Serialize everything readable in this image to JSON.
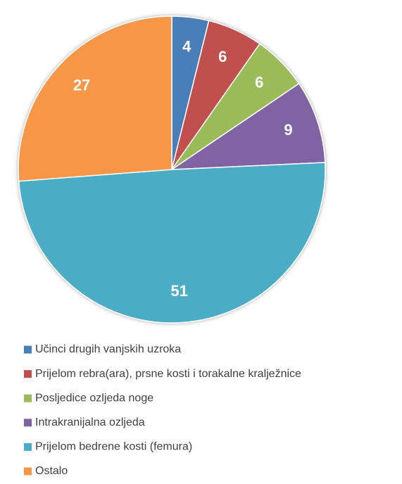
{
  "chart_data": {
    "type": "pie",
    "categories": [
      "Učinci drugih vanjskih uzroka",
      "Prijelom rebra(ara), prsne kosti i torakalne kralježnice",
      "Posljedice ozljeda noge",
      "Intrakranijalna ozljeda",
      "Prijelom bedrene kosti (femura)",
      "Ostalo"
    ],
    "values": [
      4,
      6,
      6,
      9,
      51,
      27
    ],
    "colors": [
      "#4a7ebb",
      "#c0504d",
      "#9bbb59",
      "#8064a2",
      "#4bacc6",
      "#f79646"
    ],
    "legend": "bottom"
  }
}
